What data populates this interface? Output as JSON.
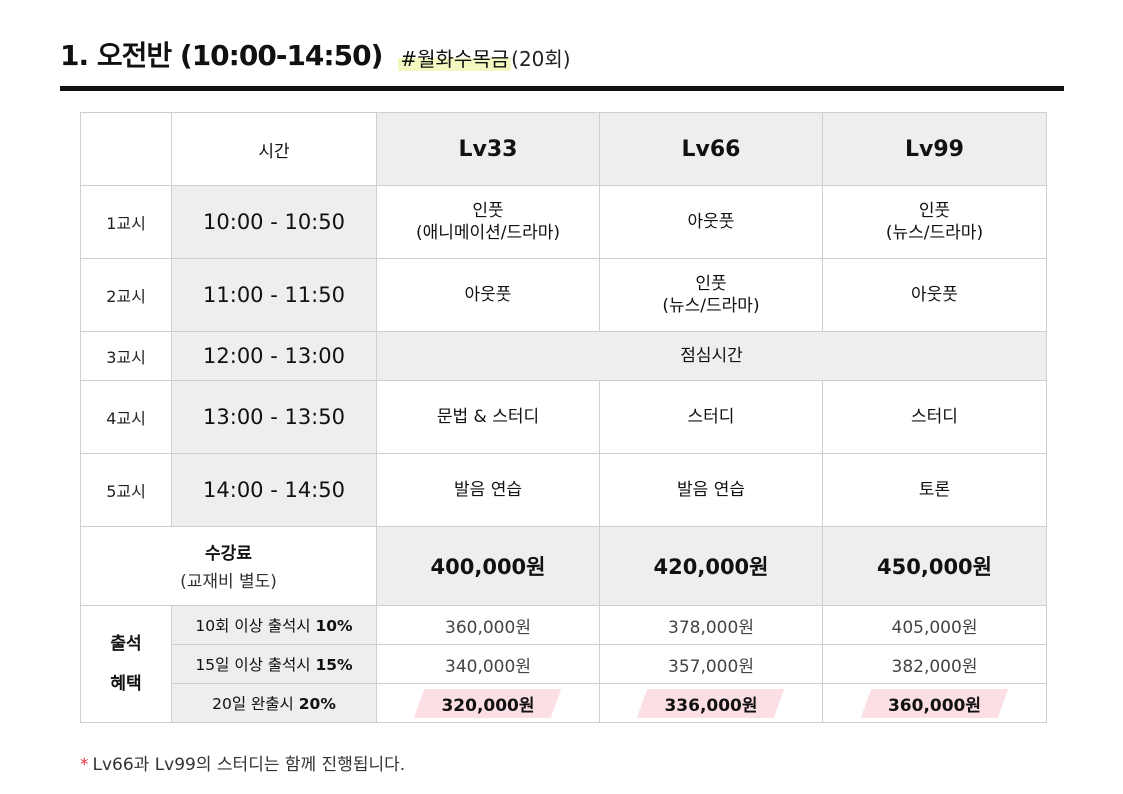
{
  "header": {
    "title": "1. 오전반 (10:00-14:50)",
    "tag": "#월화수목금",
    "count": "(20회)"
  },
  "table": {
    "time_header": "시간",
    "levels": [
      "Lv33",
      "Lv66",
      "Lv99"
    ],
    "periods": [
      {
        "name": "1교시",
        "time": "10:00 - 10:50",
        "cells": [
          [
            "인풋",
            "(애니메이션/드라마)"
          ],
          [
            "아웃풋"
          ],
          [
            "인풋",
            "(뉴스/드라마)"
          ]
        ]
      },
      {
        "name": "2교시",
        "time": "11:00 - 11:50",
        "cells": [
          [
            "아웃풋"
          ],
          [
            "인풋",
            "(뉴스/드라마)"
          ],
          [
            "아웃풋"
          ]
        ]
      },
      {
        "name": "3교시",
        "time": "12:00 - 13:00",
        "lunch": "점심시간"
      },
      {
        "name": "4교시",
        "time": "13:00 - 13:50",
        "cells": [
          [
            "문법 & 스터디"
          ],
          [
            "스터디"
          ],
          [
            "스터디"
          ]
        ]
      },
      {
        "name": "5교시",
        "time": "14:00 - 14:50",
        "cells": [
          [
            "발음 연습"
          ],
          [
            "발음 연습"
          ],
          [
            "토론"
          ]
        ]
      }
    ],
    "fee": {
      "label": "수강료",
      "sub": "(교재비 별도)",
      "values": [
        "400,000원",
        "420,000원",
        "450,000원"
      ]
    },
    "benefit": {
      "label_line1": "출석",
      "label_line2": "혜택",
      "rows": [
        {
          "cond_text": "10회 이상 출석시",
          "cond_pct": "10%",
          "values": [
            "360,000원",
            "378,000원",
            "405,000원"
          ]
        },
        {
          "cond_text": "15일 이상 출석시",
          "cond_pct": "15%",
          "values": [
            "340,000원",
            "357,000원",
            "382,000원"
          ]
        },
        {
          "cond_text": "20일 완출시",
          "cond_pct": "20%",
          "values": [
            "320,000원",
            "336,000원",
            "360,000원"
          ]
        }
      ]
    }
  },
  "note": {
    "star": "*",
    "text": "Lv66과 Lv99의 스터디는 함께 진행됩니다."
  },
  "colors": {
    "highlight": "#f3f8c0",
    "pink": "#fbdfe4",
    "star": "#e8334a",
    "gray_cell": "#eeeeee"
  }
}
